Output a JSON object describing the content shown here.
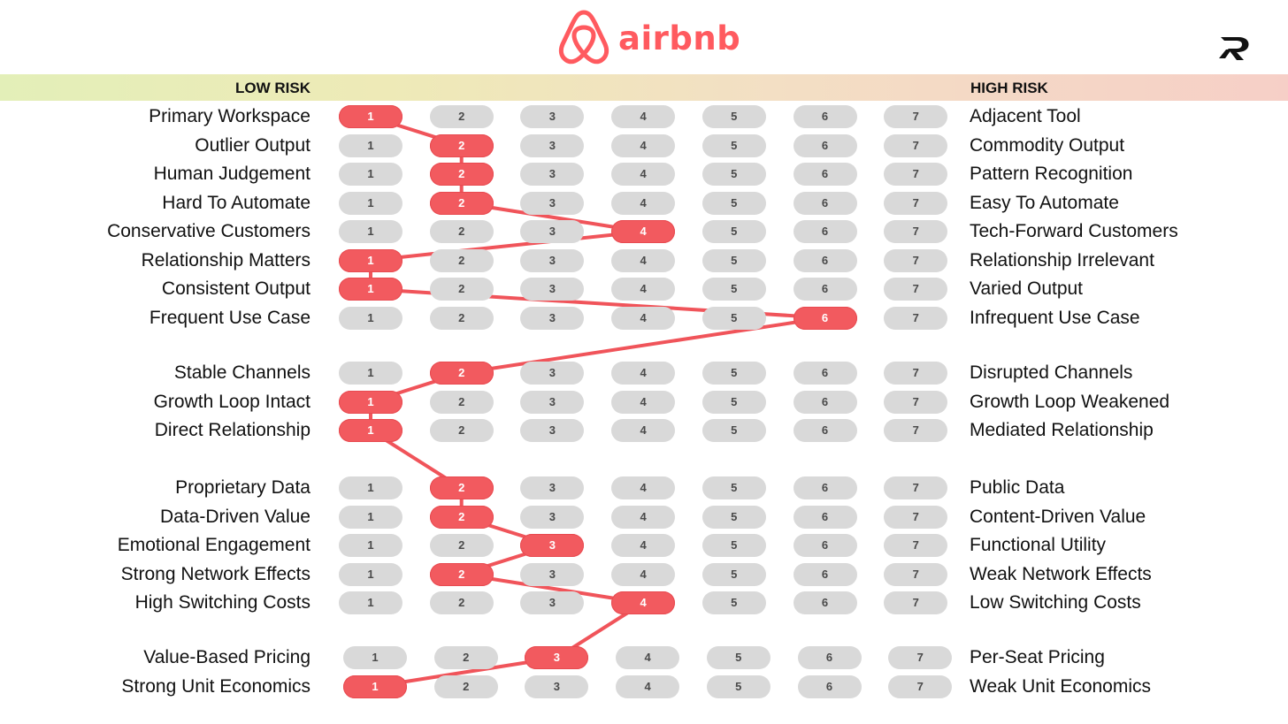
{
  "brand": {
    "name": "airbnb",
    "accent_color": "#ff5a5f",
    "logo_icon": "airbnb-belo-icon"
  },
  "corner_logo": {
    "icon": "publisher-logo-icon"
  },
  "risk_axis": {
    "low_label": "LOW RISK",
    "high_label": "HIGH RISK"
  },
  "scale": [
    1,
    2,
    3,
    4,
    5,
    6,
    7
  ],
  "colors": {
    "selected": "#f25a5f",
    "unselected": "#d9d9d9",
    "connector": "#f0545a"
  },
  "groups": [
    {
      "rows": [
        {
          "left": "Primary Workspace",
          "right": "Adjacent Tool",
          "score": 1
        },
        {
          "left": "Outlier Output",
          "right": "Commodity Output",
          "score": 2
        },
        {
          "left": "Human Judgement",
          "right": "Pattern Recognition",
          "score": 2
        },
        {
          "left": "Hard To Automate",
          "right": "Easy To Automate",
          "score": 2
        },
        {
          "left": "Conservative Customers",
          "right": "Tech-Forward Customers",
          "score": 4
        },
        {
          "left": "Relationship Matters",
          "right": "Relationship Irrelevant",
          "score": 1
        },
        {
          "left": "Consistent Output",
          "right": "Varied Output",
          "score": 1
        },
        {
          "left": "Frequent Use Case",
          "right": "Infrequent Use Case",
          "score": 6
        }
      ]
    },
    {
      "rows": [
        {
          "left": "Stable Channels",
          "right": "Disrupted Channels",
          "score": 2
        },
        {
          "left": "Growth Loop Intact",
          "right": "Growth Loop Weakened",
          "score": 1
        },
        {
          "left": "Direct Relationship",
          "right": "Mediated Relationship",
          "score": 1
        }
      ]
    },
    {
      "rows": [
        {
          "left": "Proprietary Data",
          "right": "Public Data",
          "score": 2
        },
        {
          "left": "Data-Driven Value",
          "right": "Content-Driven Value",
          "score": 2
        },
        {
          "left": "Emotional Engagement",
          "right": "Functional Utility",
          "score": 3
        },
        {
          "left": "Strong Network Effects",
          "right": "Weak Network Effects",
          "score": 2
        },
        {
          "left": "High Switching Costs",
          "right": "Low Switching Costs",
          "score": 4
        }
      ]
    },
    {
      "rows": [
        {
          "left": "Value-Based Pricing",
          "right": "Per-Seat Pricing",
          "score": 3
        },
        {
          "left": "Strong Unit Economics",
          "right": "Weak Unit Economics",
          "score": 1
        }
      ]
    }
  ]
}
